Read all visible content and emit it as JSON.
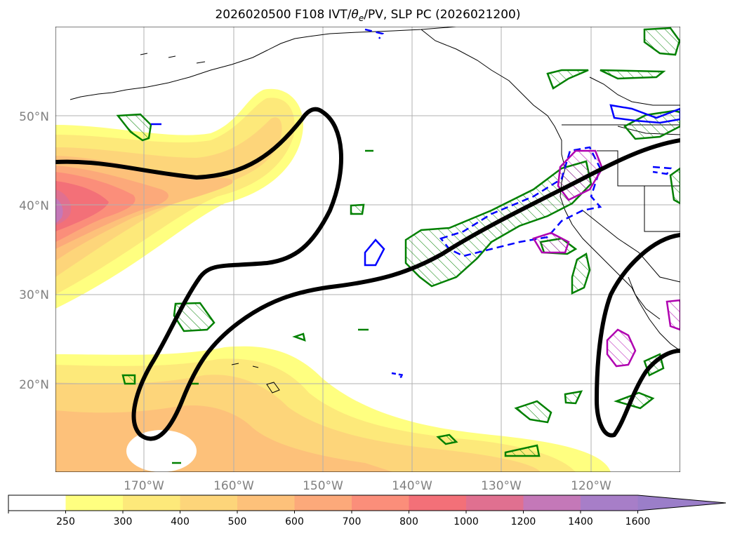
{
  "title": "2026020500 F108 IVT/θe/PV, SLP PC (2026021200)",
  "title_parts": {
    "prefix": "2026020500 F108 IVT/",
    "theta": "θ",
    "sub": "e",
    "suffix": "/PV, SLP PC (2026021200)"
  },
  "lat_labels": [
    "50°N",
    "40°N",
    "30°N",
    "20°N"
  ],
  "lon_labels": [
    "170°W",
    "160°W",
    "150°W",
    "140°W",
    "130°W",
    "120°W"
  ],
  "colorbar": {
    "ticks": [
      "250",
      "300",
      "400",
      "500",
      "600",
      "700",
      "800",
      "1000",
      "1200",
      "1400",
      "1600"
    ],
    "colors": [
      "#ffffff",
      "#ffff80",
      "#fde97a",
      "#fdd57a",
      "#fdc17a",
      "#fca97a",
      "#fb8e7a",
      "#f37078",
      "#e07090",
      "#c478b8",
      "#a77ec8",
      "#9b7ec9"
    ]
  },
  "colors": {
    "slp_contour": "#000000",
    "theta_contour": "#008000",
    "pv_contour": "#0000ff",
    "magenta_contour": "#b000b0",
    "coast": "#000000"
  }
}
